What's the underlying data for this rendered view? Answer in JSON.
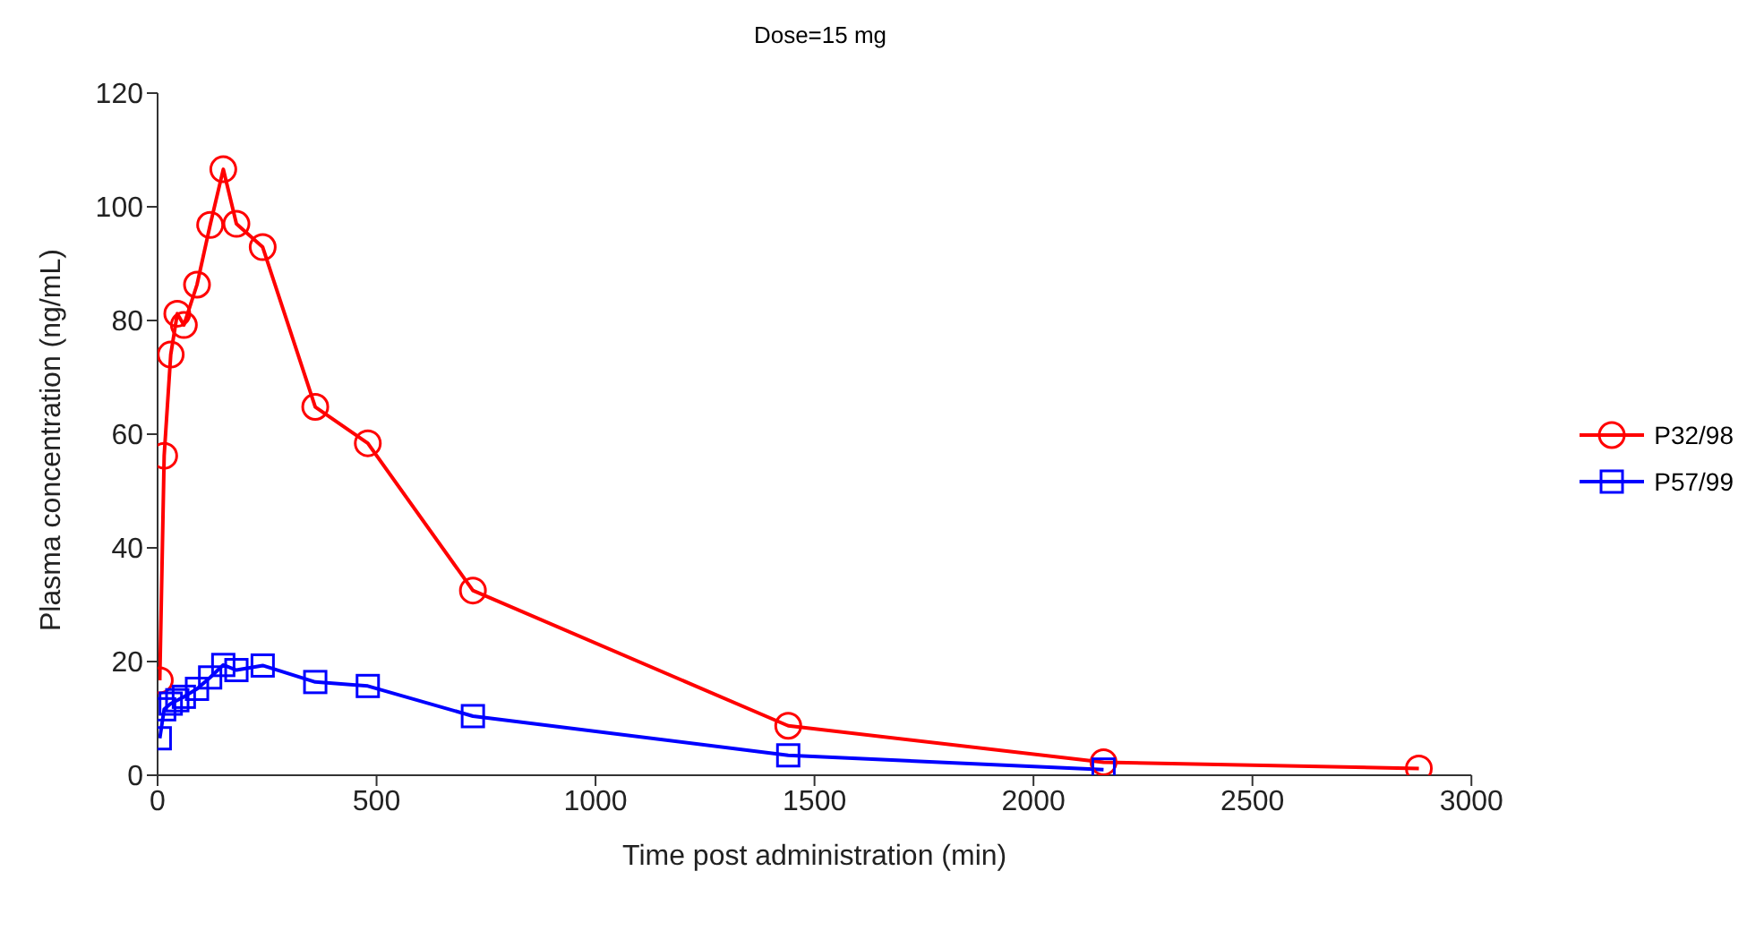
{
  "chart_data": {
    "type": "line",
    "title": "Dose=15 mg",
    "xlabel": "Time post administration (min)",
    "ylabel": "Plasma concentration (ng/mL)",
    "xlim": [
      0,
      3000
    ],
    "xticks": [
      0,
      500,
      1000,
      1500,
      2000,
      2500,
      3000
    ],
    "ylim": [
      0,
      120
    ],
    "yticks": [
      0,
      20,
      40,
      60,
      80,
      100,
      120
    ],
    "grid": false,
    "legend": "right",
    "series": [
      {
        "name": "P32/98",
        "color": "#ff0000",
        "marker": "circle",
        "x": [
          5,
          15,
          30,
          45,
          60,
          90,
          120,
          150,
          180,
          240,
          360,
          480,
          720,
          1440,
          2160,
          2880
        ],
        "values": [
          16.7,
          56.2,
          74,
          81.2,
          79.2,
          86.3,
          96.8,
          106.6,
          97,
          92.9,
          64.8,
          58.4,
          32.5,
          8.7,
          2.3,
          1.2
        ]
      },
      {
        "name": "P57/99",
        "color": "#0000ff",
        "marker": "square",
        "x": [
          5,
          15,
          30,
          45,
          60,
          90,
          120,
          150,
          180,
          240,
          360,
          480,
          720,
          1440,
          2160
        ],
        "values": [
          6.5,
          11.6,
          12.6,
          13.2,
          13.8,
          15.2,
          17.2,
          19.4,
          18.5,
          19.3,
          16.4,
          15.7,
          10.4,
          3.5,
          1.0
        ]
      }
    ]
  }
}
